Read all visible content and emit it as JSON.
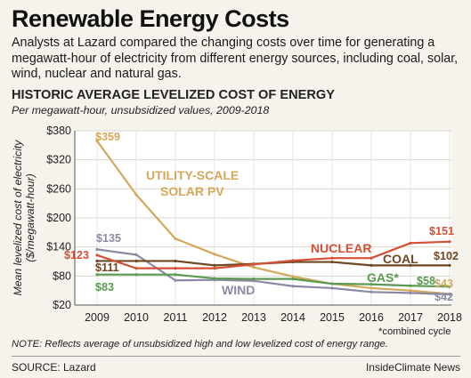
{
  "header": {
    "title": "Renewable Energy Costs",
    "intro": "Analysts at Lazard compared the changing costs over time for generating a megawatt-hour of electricity from different energy sources, including coal, solar, wind, nuclear and natural gas."
  },
  "chart_data": {
    "type": "line",
    "title": "HISTORIC AVERAGE LEVELIZED COST OF ENERGY",
    "subtitle": "Per megawatt-hour, unsubsidized values, 2009-2018",
    "ylabel": "Mean levelized cost of electricity ($/megawatt-hour)",
    "ylabel_lines": [
      "Mean levelized cost of electricity",
      "($/megawatt-hour)"
    ],
    "xlabel": "",
    "x": [
      2009,
      2010,
      2011,
      2012,
      2013,
      2014,
      2015,
      2016,
      2017,
      2018
    ],
    "ylim": [
      20,
      380
    ],
    "yticks": [
      20,
      80,
      140,
      200,
      260,
      320,
      380
    ],
    "ytick_labels": [
      "$20",
      "$80",
      "$140",
      "$200",
      "$260",
      "$320",
      "$380"
    ],
    "grid": true,
    "series": [
      {
        "name": "UTILITY-SCALE SOLAR PV",
        "name_lines": [
          "UTILITY-SCALE",
          "SOLAR PV"
        ],
        "color": "#d4a85a",
        "values": [
          359,
          248,
          157,
          125,
          98,
          79,
          64,
          55,
          50,
          43
        ],
        "start_label": "$359",
        "end_label": "$43"
      },
      {
        "name": "WIND",
        "name_lines": [
          "WIND"
        ],
        "color": "#8a8aa6",
        "values": [
          135,
          124,
          71,
          72,
          70,
          59,
          55,
          47,
          45,
          42
        ],
        "start_label": "$135",
        "end_label": "$42"
      },
      {
        "name": "NUCLEAR",
        "name_lines": [
          "NUCLEAR"
        ],
        "color": "#d54f35",
        "values": [
          123,
          96,
          96,
          96,
          104,
          112,
          117,
          117,
          148,
          151
        ],
        "start_label": "$123",
        "end_label": "$151"
      },
      {
        "name": "COAL",
        "name_lines": [
          "COAL"
        ],
        "color": "#6e4723",
        "values": [
          111,
          111,
          111,
          102,
          105,
          109,
          109,
          102,
          102,
          102
        ],
        "start_label": "$111",
        "end_label": "$102"
      },
      {
        "name": "GAS*",
        "name_lines": [
          "GAS*"
        ],
        "color": "#5a9a52",
        "values": [
          83,
          83,
          83,
          75,
          74,
          74,
          64,
          63,
          60,
          58
        ],
        "start_label": "$83",
        "end_label": "$58"
      }
    ]
  },
  "footer": {
    "combined_cycle_note": "*combined cycle",
    "note": "NOTE: Reflects average of unsubsidized high and low levelized cost of energy range.",
    "source": "SOURCE: Lazard",
    "credit": "InsideClimate News"
  }
}
